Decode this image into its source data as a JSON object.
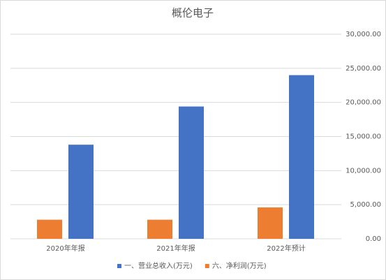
{
  "chart_data": {
    "type": "bar",
    "title": "概伦电子",
    "categories": [
      "2020年年报",
      "2021年年报",
      "2022年预计"
    ],
    "series": [
      {
        "name": "一、营业总收入(万元)",
        "color": "#4472c4",
        "values": [
          13800,
          19400,
          24000
        ]
      },
      {
        "name": "六、净利润(万元)",
        "color": "#ed7d31",
        "values": [
          2800,
          2800,
          4600
        ]
      }
    ],
    "ylim": [
      0,
      30000
    ],
    "yticks": [
      {
        "value": 0,
        "label": "0.00"
      },
      {
        "value": 5000,
        "label": "5,000.00"
      },
      {
        "value": 10000,
        "label": "10,000.00"
      },
      {
        "value": 15000,
        "label": "15,000.00"
      },
      {
        "value": 20000,
        "label": "20,000.00"
      },
      {
        "value": 25000,
        "label": "25,000.00"
      },
      {
        "value": 30000,
        "label": "30,000.00"
      }
    ],
    "grid": true,
    "legend": "bottom",
    "y_axis_side": "right"
  }
}
